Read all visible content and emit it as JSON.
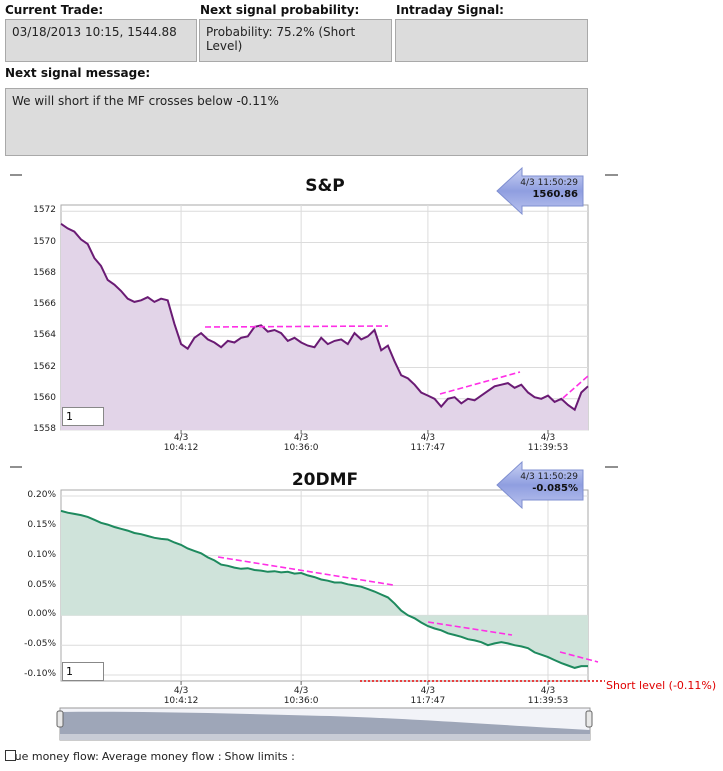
{
  "form": {
    "current_trade": {
      "label": "Current Trade:",
      "value": "03/18/2013 10:15, 1544.88"
    },
    "next_probability": {
      "label": "Next signal probability:",
      "value": "Probability: 75.2% (Short Level)"
    },
    "intraday_signal": {
      "label": "Intraday Signal:"
    },
    "next_message": {
      "label": "Next signal message:",
      "value": "We will short if  the MF crosses below -0.11%"
    }
  },
  "chart_data": [
    {
      "type": "area",
      "title": "S&P",
      "color": "#6a1b74",
      "fill": "#e2d4e8",
      "values": [
        1571.2,
        1570.9,
        1570.7,
        1570.2,
        1569.9,
        1569.0,
        1568.5,
        1567.6,
        1567.3,
        1566.9,
        1566.4,
        1566.2,
        1566.3,
        1566.5,
        1566.2,
        1566.4,
        1566.3,
        1564.8,
        1563.5,
        1563.2,
        1563.9,
        1564.2,
        1563.8,
        1563.6,
        1563.3,
        1563.7,
        1563.6,
        1563.9,
        1564.0,
        1564.6,
        1564.7,
        1564.3,
        1564.4,
        1564.2,
        1563.7,
        1563.9,
        1563.6,
        1563.4,
        1563.3,
        1563.9,
        1563.5,
        1563.7,
        1563.8,
        1563.5,
        1564.2,
        1563.8,
        1564.0,
        1564.4,
        1563.1,
        1563.4,
        1562.4,
        1561.5,
        1561.3,
        1560.9,
        1560.4,
        1560.2,
        1560.0,
        1559.5,
        1560.0,
        1560.1,
        1559.7,
        1560.0,
        1559.9,
        1560.2,
        1560.5,
        1560.8,
        1560.9,
        1561.0,
        1560.7,
        1560.9,
        1560.4,
        1560.1,
        1560.0,
        1560.2,
        1559.8,
        1560.0,
        1559.6,
        1559.3,
        1560.4,
        1560.8
      ],
      "xlim": [
        0,
        79
      ],
      "xticks": [
        {
          "value": 18,
          "label": "4/3 10:4:12"
        },
        {
          "value": 36,
          "label": "4/3 10:36:0"
        },
        {
          "value": 55,
          "label": "4/3 11:7:47"
        },
        {
          "value": 73,
          "label": "4/3 11:39:53"
        }
      ],
      "ylim": [
        1558,
        1572.4
      ],
      "yticks": [
        1558,
        1560,
        1562,
        1564,
        1566,
        1568,
        1570,
        1572
      ],
      "grid": true,
      "last": {
        "time": "4/3 11:50:29",
        "value": 1560.86
      },
      "input": 1
    },
    {
      "type": "area",
      "title": "20DMF",
      "color": "#1e8a5e",
      "fill": "#cfe3da",
      "values": [
        0.175,
        0.172,
        0.17,
        0.168,
        0.165,
        0.16,
        0.155,
        0.152,
        0.148,
        0.145,
        0.142,
        0.138,
        0.136,
        0.133,
        0.13,
        0.128,
        0.127,
        0.122,
        0.118,
        0.112,
        0.108,
        0.104,
        0.097,
        0.092,
        0.085,
        0.083,
        0.08,
        0.078,
        0.079,
        0.076,
        0.075,
        0.073,
        0.074,
        0.072,
        0.073,
        0.07,
        0.071,
        0.067,
        0.064,
        0.06,
        0.058,
        0.055,
        0.055,
        0.052,
        0.05,
        0.048,
        0.044,
        0.04,
        0.035,
        0.03,
        0.02,
        0.008,
        0.0,
        -0.005,
        -0.012,
        -0.018,
        -0.022,
        -0.025,
        -0.03,
        -0.033,
        -0.036,
        -0.04,
        -0.042,
        -0.045,
        -0.05,
        -0.047,
        -0.045,
        -0.047,
        -0.05,
        -0.052,
        -0.055,
        -0.062,
        -0.066,
        -0.07,
        -0.075,
        -0.08,
        -0.084,
        -0.088,
        -0.085,
        -0.085
      ],
      "xlim": [
        0,
        79
      ],
      "xticks": [
        {
          "value": 18,
          "label": "4/3 10:4:12"
        },
        {
          "value": 36,
          "label": "4/3 10:36:0"
        },
        {
          "value": 55,
          "label": "4/3 11:7:47"
        },
        {
          "value": 73,
          "label": "4/3 11:39:53"
        }
      ],
      "ylim": [
        -0.11,
        0.21
      ],
      "yticks": [
        {
          "value": -0.1,
          "label": "-0.10%"
        },
        {
          "value": -0.05,
          "label": "-0.05%"
        },
        {
          "value": 0,
          "label": "0.00%"
        },
        {
          "value": 0.05,
          "label": "0.05%"
        },
        {
          "value": 0.1,
          "label": "0.10%"
        },
        {
          "value": 0.15,
          "label": "0.15%"
        },
        {
          "value": 0.2,
          "label": "0.20%"
        }
      ],
      "grid": true,
      "last": {
        "time": "4/3 11:50:29",
        "value": -0.085,
        "value_label": "-0.085%"
      },
      "input": 1,
      "short_level": {
        "value": -0.11,
        "label": "Short level (-0.11%)",
        "color": "#e00000"
      }
    }
  ],
  "options": [
    {
      "label": "True money flow:",
      "checked": true
    },
    {
      "label": "Average money flow :",
      "checked": false
    },
    {
      "label": "Show limits :",
      "checked": false
    }
  ]
}
